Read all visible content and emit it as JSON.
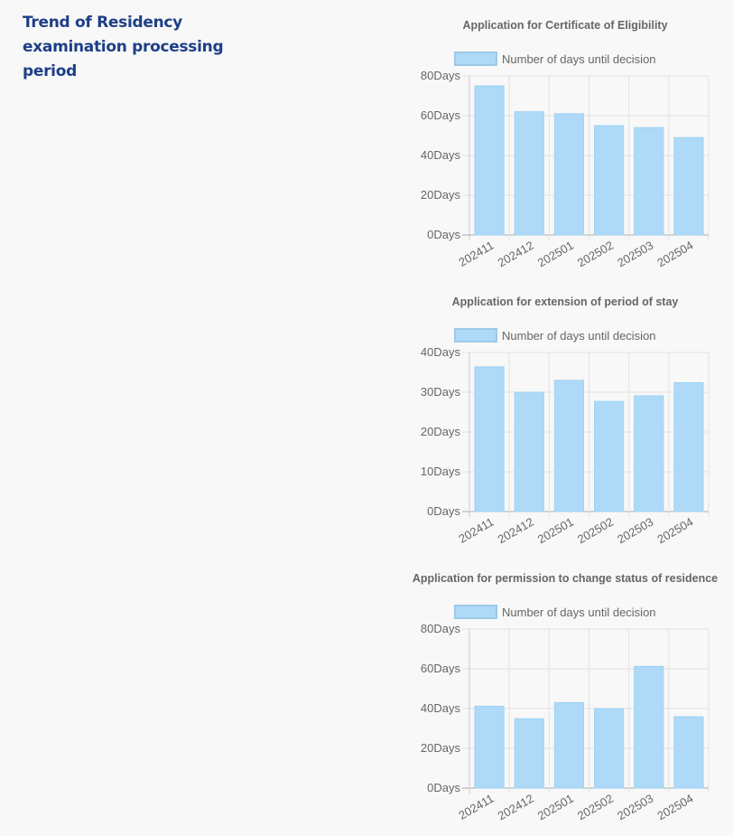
{
  "heading": "Trend of Residency examination processing period",
  "chart_data": [
    {
      "type": "bar",
      "title": "Application for Certificate of Eligibility",
      "categories": [
        "202411",
        "202412",
        "202501",
        "202502",
        "202503",
        "202504"
      ],
      "series": [
        {
          "name": "Number of days until decision",
          "values": [
            75,
            62,
            61,
            55,
            54,
            49
          ]
        }
      ],
      "tick_suffix": "Days",
      "yticks": [
        0,
        20,
        40,
        60,
        80
      ],
      "ylim": [
        0,
        80
      ],
      "grid": true,
      "legend": "top"
    },
    {
      "type": "bar",
      "title": "Application for extension of period of stay",
      "categories": [
        "202411",
        "202412",
        "202501",
        "202502",
        "202503",
        "202504"
      ],
      "series": [
        {
          "name": "Number of days until decision",
          "values": [
            36.4,
            30,
            33,
            27.7,
            29.1,
            32.4
          ]
        }
      ],
      "tick_suffix": "Days",
      "yticks": [
        0,
        10,
        20,
        30,
        40
      ],
      "ylim": [
        0,
        40
      ],
      "grid": true,
      "legend": "top"
    },
    {
      "type": "bar",
      "title": "Application for permission to change status of residence",
      "categories": [
        "202411",
        "202412",
        "202501",
        "202502",
        "202503",
        "202504"
      ],
      "series": [
        {
          "name": "Number of days until decision",
          "values": [
            41.2,
            34.9,
            43,
            40,
            61.2,
            35.9
          ]
        }
      ],
      "tick_suffix": "Days",
      "yticks": [
        0,
        20,
        40,
        60,
        80
      ],
      "ylim": [
        0,
        80
      ],
      "grid": true,
      "legend": "top"
    }
  ],
  "colors": {
    "bar_fill": "#aedaf7",
    "bar_stroke": "#9fd2f3",
    "grid": "#e2e2e2",
    "text": "#666666",
    "heading": "#1d3f86"
  }
}
